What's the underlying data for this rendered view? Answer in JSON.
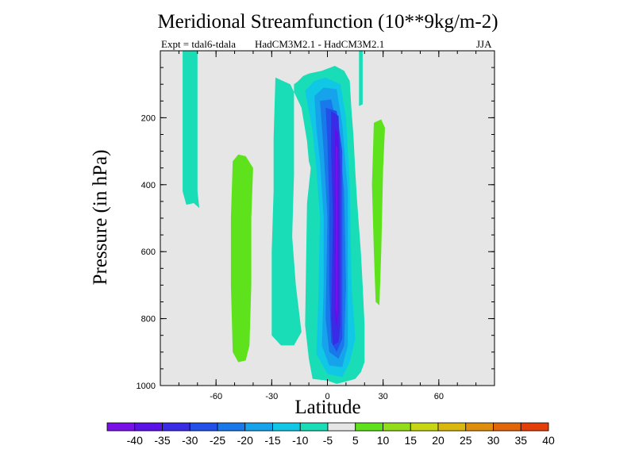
{
  "header": {
    "title": "Meridional Streamfunction (10**9kg/m-2)",
    "expt_label": "Expt = tdal6-tdala",
    "models_label": "HadCM3M2.1 - HadCM3M2.1",
    "season_label": "JJA"
  },
  "chart_data": {
    "type": "heatmap",
    "title": "Meridional Streamfunction (10**9kg/m-2)",
    "xlabel": "Latitude",
    "ylabel": "Pressure (in hPa)",
    "xlim": [
      -90,
      90
    ],
    "ylim": [
      1000,
      0
    ],
    "x_ticks": [
      -60,
      -30,
      0,
      30,
      60
    ],
    "x_tick_labels": [
      "-60",
      "-30",
      "0",
      "30",
      "60"
    ],
    "y_ticks": [
      200,
      400,
      600,
      800,
      1000
    ],
    "y_tick_labels": [
      "200",
      "400",
      "600",
      "800",
      "1000"
    ],
    "background_color": "#e6e6e6",
    "colorbar": {
      "labels": [
        "-40",
        "-35",
        "-30",
        "-25",
        "-20",
        "-15",
        "-10",
        "-5",
        "5",
        "10",
        "15",
        "20",
        "25",
        "30",
        "35",
        "40"
      ],
      "colors": [
        "#7a10e8",
        "#5a12e6",
        "#3a2be6",
        "#2350e8",
        "#1979ea",
        "#17a3ec",
        "#10c8e6",
        "#18ddb6",
        "#e6e6e6",
        "#5de21c",
        "#92dc18",
        "#c6d612",
        "#dab70c",
        "#df8e0c",
        "#e2650a",
        "#e43f08"
      ]
    },
    "regions": [
      {
        "level": "-5",
        "color": "#18ddb6",
        "label": "upper-polar south column",
        "boundary": [
          [
            -78,
            0
          ],
          [
            -70,
            0
          ],
          [
            -70,
            420
          ],
          [
            -69,
            470
          ],
          [
            -72,
            455
          ],
          [
            -76,
            460
          ],
          [
            -78,
            420
          ]
        ]
      },
      {
        "level": "-5",
        "color": "#18ddb6",
        "label": "main negative cell envelope",
        "boundary": [
          [
            -28,
            80
          ],
          [
            -20,
            100
          ],
          [
            -14,
            170
          ],
          [
            -11,
            270
          ],
          [
            -10,
            330
          ],
          [
            -9,
            350
          ],
          [
            -11,
            455
          ],
          [
            -12,
            820
          ],
          [
            -10,
            920
          ],
          [
            -8,
            980
          ],
          [
            0,
            985
          ],
          [
            5,
            995
          ],
          [
            10,
            988
          ],
          [
            15,
            980
          ],
          [
            18,
            960
          ],
          [
            20,
            930
          ],
          [
            20,
            820
          ],
          [
            19,
            700
          ],
          [
            18,
            600
          ],
          [
            16,
            450
          ],
          [
            15,
            360
          ],
          [
            14,
            250
          ],
          [
            13,
            180
          ],
          [
            12,
            90
          ],
          [
            9,
            60
          ],
          [
            4,
            45
          ],
          [
            -3,
            60
          ],
          [
            -10,
            68
          ],
          [
            -13,
            75
          ],
          [
            -16,
            92
          ],
          [
            -18,
            100
          ],
          [
            -18,
            370
          ],
          [
            -19,
            555
          ],
          [
            -17,
            700
          ],
          [
            -14,
            840
          ],
          [
            -18,
            880
          ],
          [
            -25,
            880
          ],
          [
            -30,
            850
          ],
          [
            -30,
            600
          ],
          [
            -29,
            420
          ],
          [
            -29,
            260
          ]
        ]
      },
      {
        "level": "-5",
        "color": "#18ddb6",
        "label": "upper tropical tongue",
        "boundary": [
          [
            17,
            0
          ],
          [
            19,
            0
          ],
          [
            19,
            160
          ],
          [
            17,
            165
          ]
        ]
      },
      {
        "level": "-10",
        "color": "#10c8e6",
        "label": "core contour -10",
        "boundary": [
          [
            -12,
            120
          ],
          [
            -7,
            90
          ],
          [
            -1,
            80
          ],
          [
            7,
            100
          ],
          [
            10,
            200
          ],
          [
            12,
            400
          ],
          [
            13,
            700
          ],
          [
            15,
            860
          ],
          [
            12,
            930
          ],
          [
            8,
            975
          ],
          [
            0,
            965
          ],
          [
            -6,
            905
          ],
          [
            -5,
            760
          ],
          [
            -4,
            500
          ],
          [
            -6,
            350
          ],
          [
            -8,
            240
          ]
        ]
      },
      {
        "level": "-15",
        "color": "#17a3ec",
        "label": "core contour -15",
        "boundary": [
          [
            -7,
            135
          ],
          [
            -2,
            110
          ],
          [
            5,
            115
          ],
          [
            8,
            220
          ],
          [
            11,
            420
          ],
          [
            11,
            700
          ],
          [
            11,
            880
          ],
          [
            8,
            945
          ],
          [
            1,
            940
          ],
          [
            -3,
            880
          ],
          [
            -2,
            700
          ],
          [
            -2,
            500
          ],
          [
            -4,
            330
          ],
          [
            -6,
            230
          ]
        ]
      },
      {
        "level": "-20",
        "color": "#1979ea",
        "label": "core contour -20",
        "boundary": [
          [
            -4,
            150
          ],
          [
            2,
            145
          ],
          [
            6,
            240
          ],
          [
            9,
            420
          ],
          [
            10,
            700
          ],
          [
            9,
            880
          ],
          [
            6,
            920
          ],
          [
            1,
            900
          ],
          [
            -1,
            800
          ],
          [
            0,
            500
          ],
          [
            -2,
            300
          ]
        ]
      },
      {
        "level": "-25",
        "color": "#2350e8",
        "label": "core contour -25",
        "boundary": [
          [
            -1,
            170
          ],
          [
            5,
            180
          ],
          [
            8,
            300
          ],
          [
            8,
            700
          ],
          [
            8,
            860
          ],
          [
            5,
            900
          ],
          [
            2,
            870
          ],
          [
            1,
            700
          ],
          [
            1,
            450
          ],
          [
            0,
            270
          ]
        ]
      },
      {
        "level": "-30",
        "color": "#3a2be6",
        "label": "core contour -30",
        "boundary": [
          [
            2,
            180
          ],
          [
            6,
            195
          ],
          [
            7,
            350
          ],
          [
            7,
            600
          ],
          [
            7,
            820
          ],
          [
            6,
            870
          ],
          [
            3,
            880
          ],
          [
            2,
            800
          ],
          [
            3,
            500
          ],
          [
            2,
            300
          ]
        ]
      },
      {
        "level": "-35",
        "color": "#5a12e6",
        "label": "core contour -35",
        "boundary": [
          [
            4,
            230
          ],
          [
            6,
            250
          ],
          [
            6,
            500
          ],
          [
            6,
            780
          ],
          [
            5,
            830
          ],
          [
            4,
            800
          ],
          [
            4,
            550
          ],
          [
            4,
            350
          ]
        ]
      },
      {
        "level": "-40",
        "color": "#7a10e8",
        "label": "core contour -40",
        "boundary": [
          [
            4.5,
            280
          ],
          [
            5.5,
            290
          ],
          [
            5.5,
            500
          ],
          [
            5.5,
            760
          ],
          [
            5,
            800
          ],
          [
            4.5,
            760
          ],
          [
            4.5,
            450
          ]
        ]
      },
      {
        "level": "5",
        "color": "#5de21c",
        "label": "southern subtropical positive cell",
        "boundary": [
          [
            -51,
            330
          ],
          [
            -48,
            310
          ],
          [
            -44,
            315
          ],
          [
            -40,
            350
          ],
          [
            -41,
            500
          ],
          [
            -41,
            700
          ],
          [
            -42,
            880
          ],
          [
            -44,
            925
          ],
          [
            -48,
            930
          ],
          [
            -51,
            900
          ],
          [
            -52,
            700
          ],
          [
            -52,
            500
          ]
        ]
      },
      {
        "level": "5",
        "color": "#5de21c",
        "label": "northern positive cell",
        "boundary": [
          [
            25,
            215
          ],
          [
            29,
            205
          ],
          [
            31,
            230
          ],
          [
            30,
            350
          ],
          [
            29,
            600
          ],
          [
            28,
            760
          ],
          [
            26,
            750
          ],
          [
            25,
            600
          ],
          [
            24,
            400
          ]
        ]
      }
    ]
  }
}
